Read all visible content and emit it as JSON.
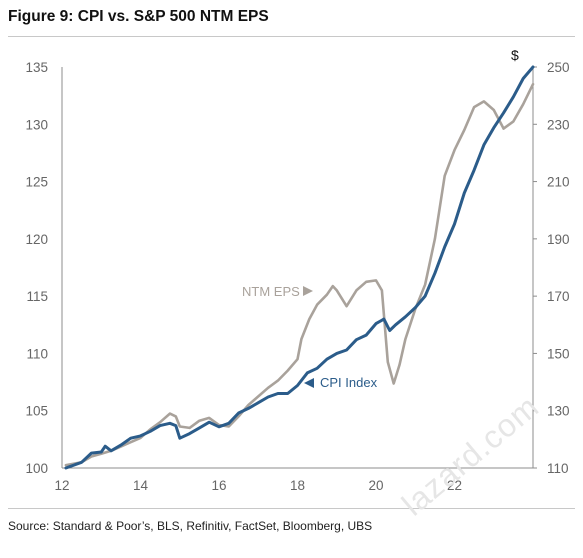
{
  "title": "Figure 9: CPI vs. S&P 500 NTM EPS",
  "source": "Source: Standard & Poor’s, BLS, Refinitiv, FactSet, Bloomberg, UBS",
  "watermark": "lazard.com",
  "colors": {
    "cpi": "#2b5c8a",
    "eps": "#a9a29b",
    "axis": "#8c8c8c",
    "tick": "#666666"
  },
  "chart_data": {
    "type": "line",
    "title": "Figure 9: CPI vs. S&P 500 NTM EPS",
    "x_ticks": [
      "12",
      "14",
      "16",
      "18",
      "20",
      "22"
    ],
    "x_tick_values": [
      2012,
      2014,
      2016,
      2018,
      2020,
      2022
    ],
    "xlim": [
      2012,
      2024.0
    ],
    "y_left": {
      "lim": [
        100,
        135
      ],
      "ticks": [
        "100",
        "105",
        "110",
        "115",
        "120",
        "125",
        "130",
        "135"
      ]
    },
    "y_right": {
      "lim": [
        110,
        250
      ],
      "ticks": [
        "110",
        "130",
        "150",
        "170",
        "190",
        "210",
        "230",
        "250"
      ],
      "unit": "$"
    },
    "annotations": [
      {
        "text": "NTM EPS",
        "arrow": "right",
        "series": "eps"
      },
      {
        "text": "CPI Index",
        "arrow": "left",
        "series": "cpi"
      }
    ],
    "series": [
      {
        "name": "CPI Index",
        "key": "cpi",
        "axis": "left",
        "points": [
          [
            2012.1,
            100.0
          ],
          [
            2012.5,
            100.5
          ],
          [
            2012.75,
            101.3
          ],
          [
            2013.0,
            101.4
          ],
          [
            2013.1,
            101.9
          ],
          [
            2013.25,
            101.5
          ],
          [
            2013.5,
            102.0
          ],
          [
            2013.75,
            102.6
          ],
          [
            2014.0,
            102.8
          ],
          [
            2014.25,
            103.2
          ],
          [
            2014.5,
            103.7
          ],
          [
            2014.75,
            103.9
          ],
          [
            2014.9,
            103.7
          ],
          [
            2015.0,
            102.6
          ],
          [
            2015.25,
            103.0
          ],
          [
            2015.5,
            103.5
          ],
          [
            2015.75,
            104.0
          ],
          [
            2016.0,
            103.6
          ],
          [
            2016.25,
            103.9
          ],
          [
            2016.5,
            104.8
          ],
          [
            2016.75,
            105.2
          ],
          [
            2017.0,
            105.7
          ],
          [
            2017.25,
            106.2
          ],
          [
            2017.5,
            106.5
          ],
          [
            2017.75,
            106.5
          ],
          [
            2018.0,
            107.2
          ],
          [
            2018.25,
            108.3
          ],
          [
            2018.5,
            108.7
          ],
          [
            2018.75,
            109.5
          ],
          [
            2019.0,
            110.0
          ],
          [
            2019.25,
            110.3
          ],
          [
            2019.5,
            111.2
          ],
          [
            2019.75,
            111.6
          ],
          [
            2020.0,
            112.6
          ],
          [
            2020.2,
            113.0
          ],
          [
            2020.35,
            112.0
          ],
          [
            2020.5,
            112.5
          ],
          [
            2020.75,
            113.2
          ],
          [
            2021.0,
            114.0
          ],
          [
            2021.25,
            115.0
          ],
          [
            2021.5,
            117.0
          ],
          [
            2021.75,
            119.3
          ],
          [
            2022.0,
            121.3
          ],
          [
            2022.25,
            124.0
          ],
          [
            2022.5,
            126.0
          ],
          [
            2022.75,
            128.2
          ],
          [
            2023.0,
            129.7
          ],
          [
            2023.25,
            131.0
          ],
          [
            2023.5,
            132.4
          ],
          [
            2023.75,
            134.0
          ],
          [
            2024.0,
            135.0
          ]
        ]
      },
      {
        "name": "NTM EPS",
        "key": "eps",
        "axis": "right",
        "points": [
          [
            2012.1,
            111.0
          ],
          [
            2012.5,
            112.0
          ],
          [
            2012.75,
            114.0
          ],
          [
            2013.0,
            115.0
          ],
          [
            2013.25,
            116.0
          ],
          [
            2013.5,
            117.5
          ],
          [
            2013.75,
            119.0
          ],
          [
            2014.0,
            120.5
          ],
          [
            2014.25,
            123.5
          ],
          [
            2014.5,
            126.0
          ],
          [
            2014.75,
            129.0
          ],
          [
            2014.9,
            128.0
          ],
          [
            2015.0,
            124.5
          ],
          [
            2015.25,
            124.0
          ],
          [
            2015.5,
            126.5
          ],
          [
            2015.75,
            127.5
          ],
          [
            2016.0,
            125.0
          ],
          [
            2016.25,
            124.5
          ],
          [
            2016.5,
            128.0
          ],
          [
            2016.75,
            132.0
          ],
          [
            2017.0,
            135.0
          ],
          [
            2017.25,
            138.0
          ],
          [
            2017.5,
            140.5
          ],
          [
            2017.75,
            144.0
          ],
          [
            2018.0,
            148.0
          ],
          [
            2018.1,
            155.0
          ],
          [
            2018.3,
            162.0
          ],
          [
            2018.5,
            167.0
          ],
          [
            2018.75,
            170.5
          ],
          [
            2018.9,
            173.5
          ],
          [
            2019.0,
            172.0
          ],
          [
            2019.25,
            166.5
          ],
          [
            2019.5,
            172.0
          ],
          [
            2019.75,
            175.0
          ],
          [
            2020.0,
            175.5
          ],
          [
            2020.15,
            172.0
          ],
          [
            2020.3,
            147.0
          ],
          [
            2020.45,
            139.5
          ],
          [
            2020.6,
            146.0
          ],
          [
            2020.75,
            155.0
          ],
          [
            2021.0,
            165.5
          ],
          [
            2021.25,
            174.0
          ],
          [
            2021.5,
            190.0
          ],
          [
            2021.75,
            212.0
          ],
          [
            2022.0,
            221.0
          ],
          [
            2022.25,
            228.0
          ],
          [
            2022.5,
            236.0
          ],
          [
            2022.75,
            238.0
          ],
          [
            2023.0,
            235.0
          ],
          [
            2023.25,
            228.5
          ],
          [
            2023.5,
            231.0
          ],
          [
            2023.75,
            237.0
          ],
          [
            2024.0,
            244.0
          ]
        ]
      }
    ]
  }
}
